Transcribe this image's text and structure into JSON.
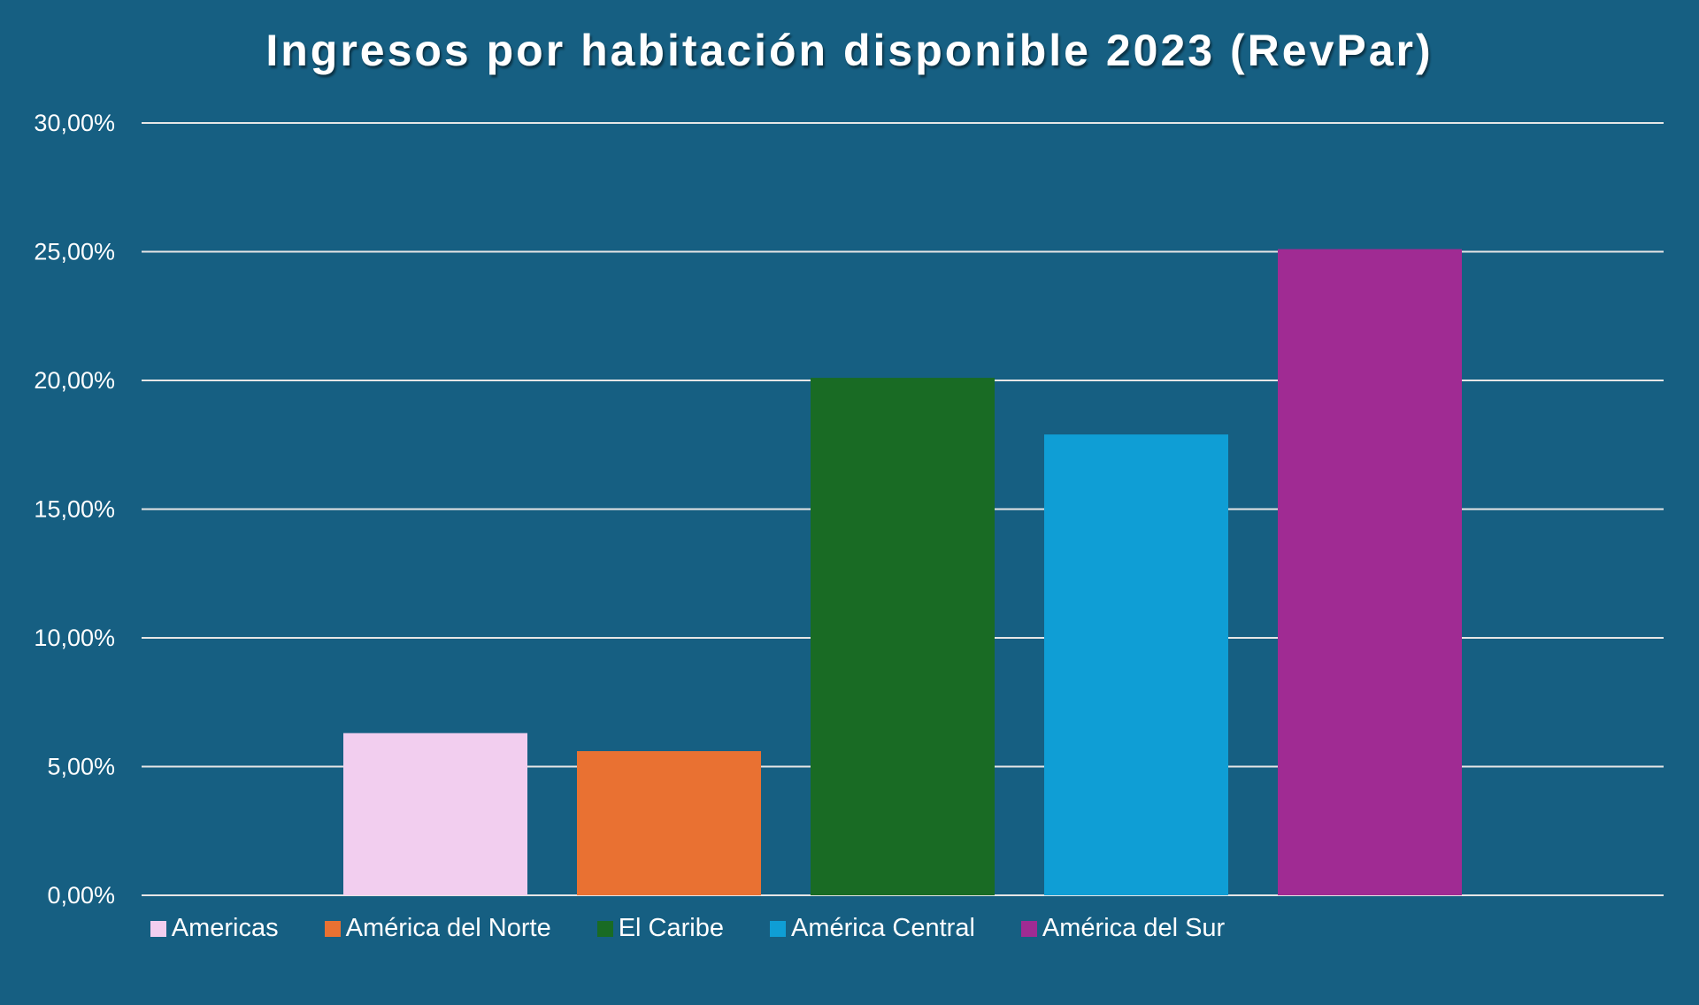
{
  "chart_data": {
    "type": "bar",
    "title": "Ingresos por habitación disponible 2023 (RevPar)",
    "xlabel": "",
    "ylabel": "",
    "ylim": [
      0,
      30
    ],
    "yticks": [
      0,
      5,
      10,
      15,
      20,
      25,
      30
    ],
    "ytick_labels": [
      "0,00%",
      "5,00%",
      "10,00%",
      "15,00%",
      "20,00%",
      "25,00%",
      "30,00%"
    ],
    "grid": true,
    "legend_position": "bottom",
    "categories": [
      "Americas",
      "América del Norte",
      "El Caribe",
      "América Central",
      "América del Sur"
    ],
    "values": [
      6.3,
      5.6,
      20.1,
      17.9,
      25.1
    ],
    "colors": [
      "#F2CEEF",
      "#E97132",
      "#196B24",
      "#0F9ED5",
      "#A02B93"
    ],
    "value_unit": "%"
  },
  "colors": {
    "background": "#165F82",
    "gridline": "#E6E6E6",
    "text": "#FFFFFF"
  }
}
